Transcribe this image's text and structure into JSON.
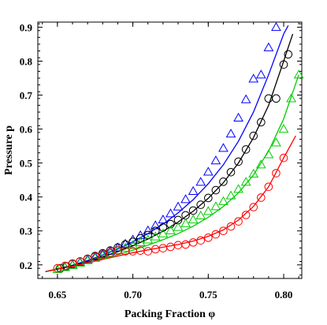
{
  "chart_data": {
    "type": "scatter",
    "title": "",
    "xlabel": "Packing Fraction φ",
    "ylabel": "Pressure p",
    "xlim": [
      0.637,
      0.812
    ],
    "ylim": [
      0.16,
      0.915
    ],
    "xticks": [
      0.65,
      0.7,
      0.75,
      0.8
    ],
    "xtick_labels": [
      "0.65",
      "0.70",
      "0.75",
      "0.80"
    ],
    "yticks": [
      0.2,
      0.3,
      0.4,
      0.5,
      0.6,
      0.7,
      0.8,
      0.9
    ],
    "ytick_labels": [
      "0.2",
      "0.3",
      "0.4",
      "0.5",
      "0.6",
      "0.7",
      "0.8",
      "0.9"
    ],
    "grid": false,
    "frame": "box",
    "series": [
      {
        "color": "#0000ff",
        "marker": "triangle",
        "points": {
          "x": [
            0.655,
            0.66,
            0.665,
            0.67,
            0.675,
            0.68,
            0.685,
            0.69,
            0.695,
            0.7,
            0.705,
            0.71,
            0.715,
            0.72,
            0.725,
            0.73,
            0.735,
            0.74,
            0.745,
            0.75,
            0.755,
            0.76,
            0.765,
            0.77,
            0.775,
            0.78,
            0.785,
            0.79,
            0.795
          ],
          "y": [
            0.193,
            0.2,
            0.208,
            0.216,
            0.224,
            0.232,
            0.241,
            0.251,
            0.262,
            0.274,
            0.287,
            0.301,
            0.316,
            0.333,
            0.351,
            0.371,
            0.393,
            0.417,
            0.444,
            0.474,
            0.507,
            0.544,
            0.586,
            0.633,
            0.687,
            0.748,
            0.76,
            0.84,
            0.9
          ]
        },
        "curve": {
          "x": [
            0.642,
            0.65,
            0.66,
            0.67,
            0.68,
            0.69,
            0.7,
            0.71,
            0.72,
            0.73,
            0.74,
            0.75,
            0.76,
            0.77,
            0.78,
            0.79,
            0.8,
            0.803
          ],
          "y": [
            0.18,
            0.188,
            0.199,
            0.213,
            0.229,
            0.247,
            0.268,
            0.292,
            0.32,
            0.353,
            0.392,
            0.439,
            0.495,
            0.564,
            0.65,
            0.76,
            0.88,
            0.905
          ]
        }
      },
      {
        "color": "#000000",
        "marker": "circle",
        "points": {
          "x": [
            0.652,
            0.656,
            0.66,
            0.665,
            0.67,
            0.675,
            0.68,
            0.685,
            0.69,
            0.695,
            0.7,
            0.705,
            0.71,
            0.715,
            0.72,
            0.725,
            0.73,
            0.735,
            0.74,
            0.745,
            0.75,
            0.755,
            0.76,
            0.765,
            0.77,
            0.775,
            0.78,
            0.785,
            0.79,
            0.795,
            0.8,
            0.803
          ],
          "y": [
            0.19,
            0.196,
            0.203,
            0.21,
            0.218,
            0.226,
            0.234,
            0.242,
            0.251,
            0.26,
            0.268,
            0.278,
            0.288,
            0.3,
            0.31,
            0.32,
            0.332,
            0.346,
            0.36,
            0.377,
            0.397,
            0.42,
            0.445,
            0.473,
            0.504,
            0.54,
            0.58,
            0.62,
            0.69,
            0.69,
            0.79,
            0.82
          ]
        },
        "curve": {
          "x": [
            0.642,
            0.65,
            0.66,
            0.67,
            0.68,
            0.69,
            0.7,
            0.71,
            0.72,
            0.73,
            0.74,
            0.75,
            0.76,
            0.77,
            0.78,
            0.79,
            0.8,
            0.806
          ],
          "y": [
            0.18,
            0.188,
            0.198,
            0.21,
            0.224,
            0.239,
            0.256,
            0.276,
            0.299,
            0.326,
            0.358,
            0.396,
            0.442,
            0.5,
            0.575,
            0.67,
            0.8,
            0.88
          ]
        }
      },
      {
        "color": "#00cc00",
        "marker": "triangle",
        "points": {
          "x": [
            0.65,
            0.655,
            0.66,
            0.665,
            0.67,
            0.675,
            0.68,
            0.685,
            0.69,
            0.695,
            0.7,
            0.705,
            0.71,
            0.715,
            0.72,
            0.725,
            0.73,
            0.735,
            0.74,
            0.745,
            0.75,
            0.755,
            0.76,
            0.765,
            0.77,
            0.775,
            0.78,
            0.785,
            0.79,
            0.795,
            0.8,
            0.805,
            0.81
          ],
          "y": [
            0.187,
            0.193,
            0.199,
            0.206,
            0.213,
            0.22,
            0.228,
            0.235,
            0.243,
            0.25,
            0.258,
            0.266,
            0.274,
            0.283,
            0.292,
            0.301,
            0.311,
            0.322,
            0.333,
            0.345,
            0.358,
            0.372,
            0.387,
            0.404,
            0.423,
            0.444,
            0.468,
            0.495,
            0.525,
            0.56,
            0.6,
            0.69,
            0.76
          ]
        },
        "curve": {
          "x": [
            0.642,
            0.65,
            0.66,
            0.67,
            0.68,
            0.69,
            0.7,
            0.71,
            0.72,
            0.73,
            0.74,
            0.75,
            0.76,
            0.77,
            0.78,
            0.79,
            0.8,
            0.81
          ],
          "y": [
            0.18,
            0.187,
            0.196,
            0.206,
            0.218,
            0.23,
            0.243,
            0.258,
            0.274,
            0.292,
            0.314,
            0.34,
            0.372,
            0.412,
            0.465,
            0.535,
            0.63,
            0.76
          ]
        }
      },
      {
        "color": "#ff0000",
        "marker": "circle",
        "points": {
          "x": [
            0.65,
            0.655,
            0.66,
            0.665,
            0.67,
            0.675,
            0.68,
            0.685,
            0.69,
            0.695,
            0.7,
            0.705,
            0.71,
            0.715,
            0.72,
            0.725,
            0.73,
            0.735,
            0.74,
            0.745,
            0.75,
            0.755,
            0.76,
            0.765,
            0.77,
            0.775,
            0.78,
            0.785,
            0.79,
            0.795,
            0.8
          ],
          "y": [
            0.19,
            0.197,
            0.204,
            0.21,
            0.217,
            0.224,
            0.23,
            0.236,
            0.242,
            0.24,
            0.24,
            0.242,
            0.24,
            0.246,
            0.249,
            0.253,
            0.258,
            0.26,
            0.266,
            0.272,
            0.28,
            0.29,
            0.3,
            0.313,
            0.328,
            0.347,
            0.37,
            0.398,
            0.43,
            0.47,
            0.515
          ]
        },
        "curve": {
          "x": [
            0.642,
            0.65,
            0.66,
            0.67,
            0.68,
            0.69,
            0.7,
            0.71,
            0.72,
            0.73,
            0.74,
            0.75,
            0.76,
            0.77,
            0.78,
            0.79,
            0.8,
            0.808
          ],
          "y": [
            0.18,
            0.187,
            0.196,
            0.206,
            0.216,
            0.226,
            0.236,
            0.244,
            0.252,
            0.26,
            0.27,
            0.284,
            0.303,
            0.332,
            0.372,
            0.43,
            0.515,
            0.58
          ]
        }
      }
    ]
  }
}
